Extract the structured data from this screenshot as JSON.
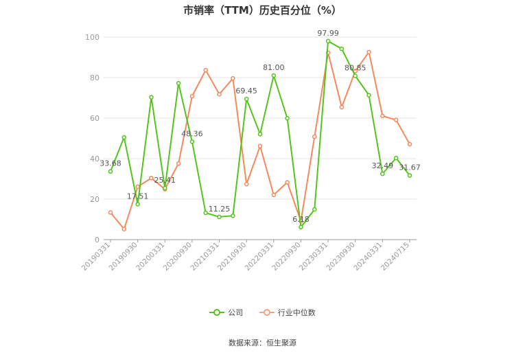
{
  "chart_data": {
    "type": "line",
    "title": "市销率（TTM）历史百分位（%）",
    "ylim": [
      0,
      100
    ],
    "y_ticks": [
      0,
      20,
      40,
      60,
      80,
      100
    ],
    "grid": true,
    "legend_position": "bottom",
    "x": [
      "20190331",
      "",
      "20190930",
      "",
      "20200331",
      "",
      "20200930",
      "",
      "20210331",
      "",
      "20210930",
      "",
      "20220331",
      "",
      "20220930",
      "",
      "20230331",
      "",
      "20230930",
      "",
      "20240331",
      "",
      "20240715"
    ],
    "x_tick_labels": [
      "20190331",
      "20190930",
      "20200331",
      "20200930",
      "20210331",
      "20210930",
      "20220331",
      "20220930",
      "20230331",
      "20230930",
      "20240331",
      "20240715"
    ],
    "series": [
      {
        "name": "公司",
        "color": "#52c41a",
        "values": [
          33.68,
          50.5,
          17.51,
          70.3,
          25.41,
          77.2,
          48.36,
          13.2,
          11.25,
          11.8,
          69.45,
          52.1,
          81.0,
          59.9,
          6.18,
          14.9,
          97.99,
          94.2,
          80.85,
          71.3,
          32.49,
          40.3,
          31.67
        ],
        "labeled_values": {
          "0": "33.68",
          "2": "17.51",
          "4": "25.41",
          "6": "48.36",
          "8": "11.25",
          "10": "69.45",
          "12": "81.00",
          "14": "6.18",
          "16": "97.99",
          "18": "80.85",
          "20": "32.49",
          "22": "31.67"
        }
      },
      {
        "name": "行业中位数",
        "color": "#f5895a",
        "values": [
          13.4,
          5.2,
          26.1,
          30.4,
          24.9,
          37.6,
          70.8,
          83.7,
          71.8,
          79.6,
          27.4,
          46.2,
          22.1,
          28.3,
          9.1,
          50.8,
          92.3,
          65.4,
          83.2,
          92.6,
          61.1,
          59.1,
          47.1
        ]
      }
    ]
  },
  "source_text": "数据来源：恒生聚源"
}
